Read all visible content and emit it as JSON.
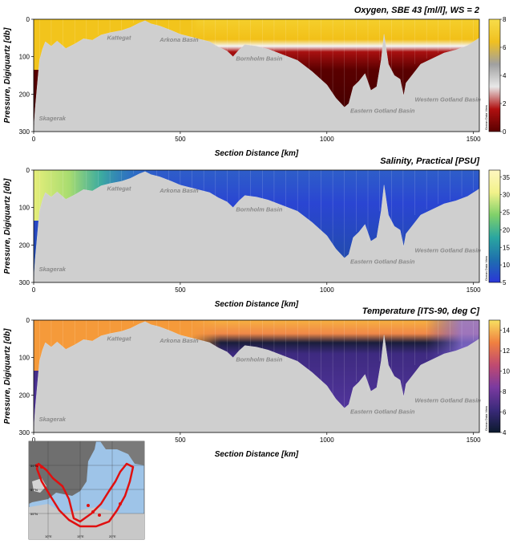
{
  "chart_data": [
    {
      "type": "heatmap",
      "title": "Oxygen, SBE 43 [ml/l], WS = 2",
      "xlabel": "Section Distance [km]",
      "ylabel": "Pressure, Digiquartz [db]",
      "xlim": [
        0,
        1520
      ],
      "ylim": [
        300,
        0
      ],
      "x_ticks": [
        "0",
        "500",
        "1000",
        "1500"
      ],
      "y_ticks": [
        "0",
        "100",
        "200",
        "300"
      ],
      "colorbar": {
        "min": 0,
        "max": 8,
        "ticks": [
          "0",
          "2",
          "4",
          "6",
          "8"
        ],
        "colors": [
          "#5a0000",
          "#b01010",
          "#e8e8e8",
          "#a0a0a0",
          "#f0c020",
          "#f7dd4a"
        ]
      },
      "regions": [
        "Skagerak",
        "Kattegat",
        "Arkona Basin",
        "Bornholm Basin",
        "Eastern Gotland Basin",
        "Western Gotland Basin"
      ],
      "watermark": "Ocean Data View"
    },
    {
      "type": "heatmap",
      "title": "Salinity, Practical [PSU]",
      "xlabel": "Section Distance [km]",
      "ylabel": "Pressure, Digiquartz [db]",
      "xlim": [
        0,
        1520
      ],
      "ylim": [
        300,
        0
      ],
      "x_ticks": [
        "0",
        "500",
        "1000",
        "1500"
      ],
      "y_ticks": [
        "0",
        "100",
        "200",
        "300"
      ],
      "colorbar": {
        "min": 5,
        "max": 37,
        "ticks": [
          "5",
          "10",
          "15",
          "20",
          "25",
          "30",
          "35"
        ],
        "colors": [
          "#2a36d8",
          "#1e6fae",
          "#2aa6a0",
          "#7fd06a",
          "#f2f28a",
          "#fff6c0"
        ]
      },
      "regions": [
        "Skagerak",
        "Kattegat",
        "Arkona Basin",
        "Bornholm Basin",
        "Eastern Gotland Basin",
        "Western Gotland Basin"
      ],
      "watermark": "Ocean Data View"
    },
    {
      "type": "heatmap",
      "title": "Temperature [ITS-90, deg C]",
      "xlabel": "Section Distance [km]",
      "ylabel": "Pressure, Digiquartz [db]",
      "xlim": [
        0,
        1520
      ],
      "ylim": [
        300,
        0
      ],
      "x_ticks": [
        "0",
        "500",
        "1000",
        "1500"
      ],
      "y_ticks": [
        "0",
        "100",
        "200",
        "300"
      ],
      "colorbar": {
        "min": 4,
        "max": 15,
        "ticks": [
          "4",
          "6",
          "8",
          "10",
          "12",
          "14"
        ],
        "colors": [
          "#0c1a2e",
          "#3a2a7a",
          "#7a3aa0",
          "#c04a70",
          "#f08040",
          "#f7e060"
        ]
      },
      "regions": [
        "Skagerak",
        "Kattegat",
        "Arkona Basin",
        "Bornholm Basin",
        "Eastern Gotland Basin",
        "Western Gotland Basin"
      ],
      "watermark": "Ocean Data View"
    }
  ],
  "seafloor": {
    "km": [
      0,
      5,
      20,
      30,
      40,
      60,
      80,
      110,
      140,
      170,
      200,
      230,
      260,
      300,
      330,
      360,
      380,
      400,
      430,
      470,
      500,
      530,
      560,
      600,
      630,
      660,
      680,
      700,
      720,
      760,
      800,
      850,
      900,
      950,
      1000,
      1030,
      1060,
      1075,
      1090,
      1110,
      1130,
      1150,
      1170,
      1185,
      1195,
      1210,
      1230,
      1250,
      1262,
      1270,
      1290,
      1320,
      1360,
      1400,
      1440,
      1480,
      1510,
      1520
    ],
    "depth_db": [
      300,
      240,
      110,
      80,
      60,
      72,
      58,
      78,
      66,
      52,
      56,
      42,
      36,
      30,
      22,
      10,
      4,
      12,
      18,
      30,
      40,
      46,
      52,
      60,
      74,
      85,
      100,
      82,
      68,
      72,
      80,
      95,
      110,
      140,
      175,
      210,
      235,
      225,
      180,
      165,
      145,
      190,
      180,
      110,
      40,
      120,
      150,
      160,
      205,
      170,
      150,
      120,
      105,
      90,
      82,
      70,
      55,
      50
    ]
  },
  "map_inset": {
    "lat_labels": [
      "59°N",
      "57°N",
      "55°N"
    ],
    "lon_labels": [
      "10°E",
      "15°E",
      "20°E"
    ]
  }
}
